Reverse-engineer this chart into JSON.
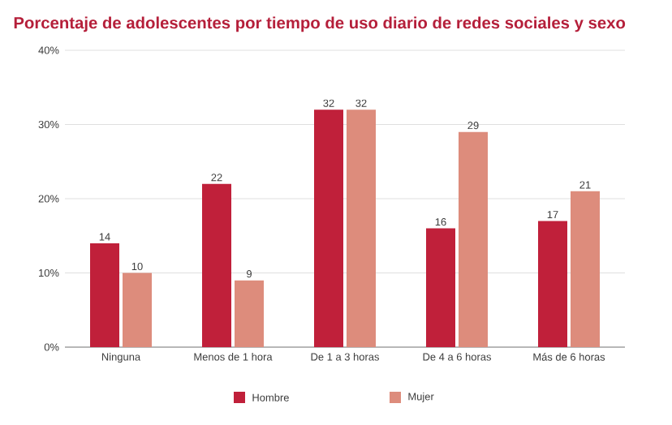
{
  "chart_data": {
    "type": "bar",
    "title": "Porcentaje de adolescentes por tiempo de uso diario de redes sociales y sexo",
    "categories": [
      "Ninguna",
      "Menos de 1 hora",
      "De 1 a 3 horas",
      "De 4 a 6 horas",
      "Más de 6 horas"
    ],
    "series": [
      {
        "name": "Hombre",
        "color": "#c0203a",
        "values": [
          14,
          22,
          32,
          16,
          17
        ]
      },
      {
        "name": "Mujer",
        "color": "#dd8c7c",
        "values": [
          10,
          9,
          32,
          29,
          21
        ]
      }
    ],
    "ylim": [
      0,
      40
    ],
    "yticks": [
      {
        "value": 0,
        "label": "0%"
      },
      {
        "value": 10,
        "label": "10%"
      },
      {
        "value": 20,
        "label": "20%"
      },
      {
        "value": 30,
        "label": "30%"
      },
      {
        "value": 40,
        "label": "40%"
      }
    ],
    "grid": "y",
    "legend": "bottom",
    "data_labels": true
  }
}
